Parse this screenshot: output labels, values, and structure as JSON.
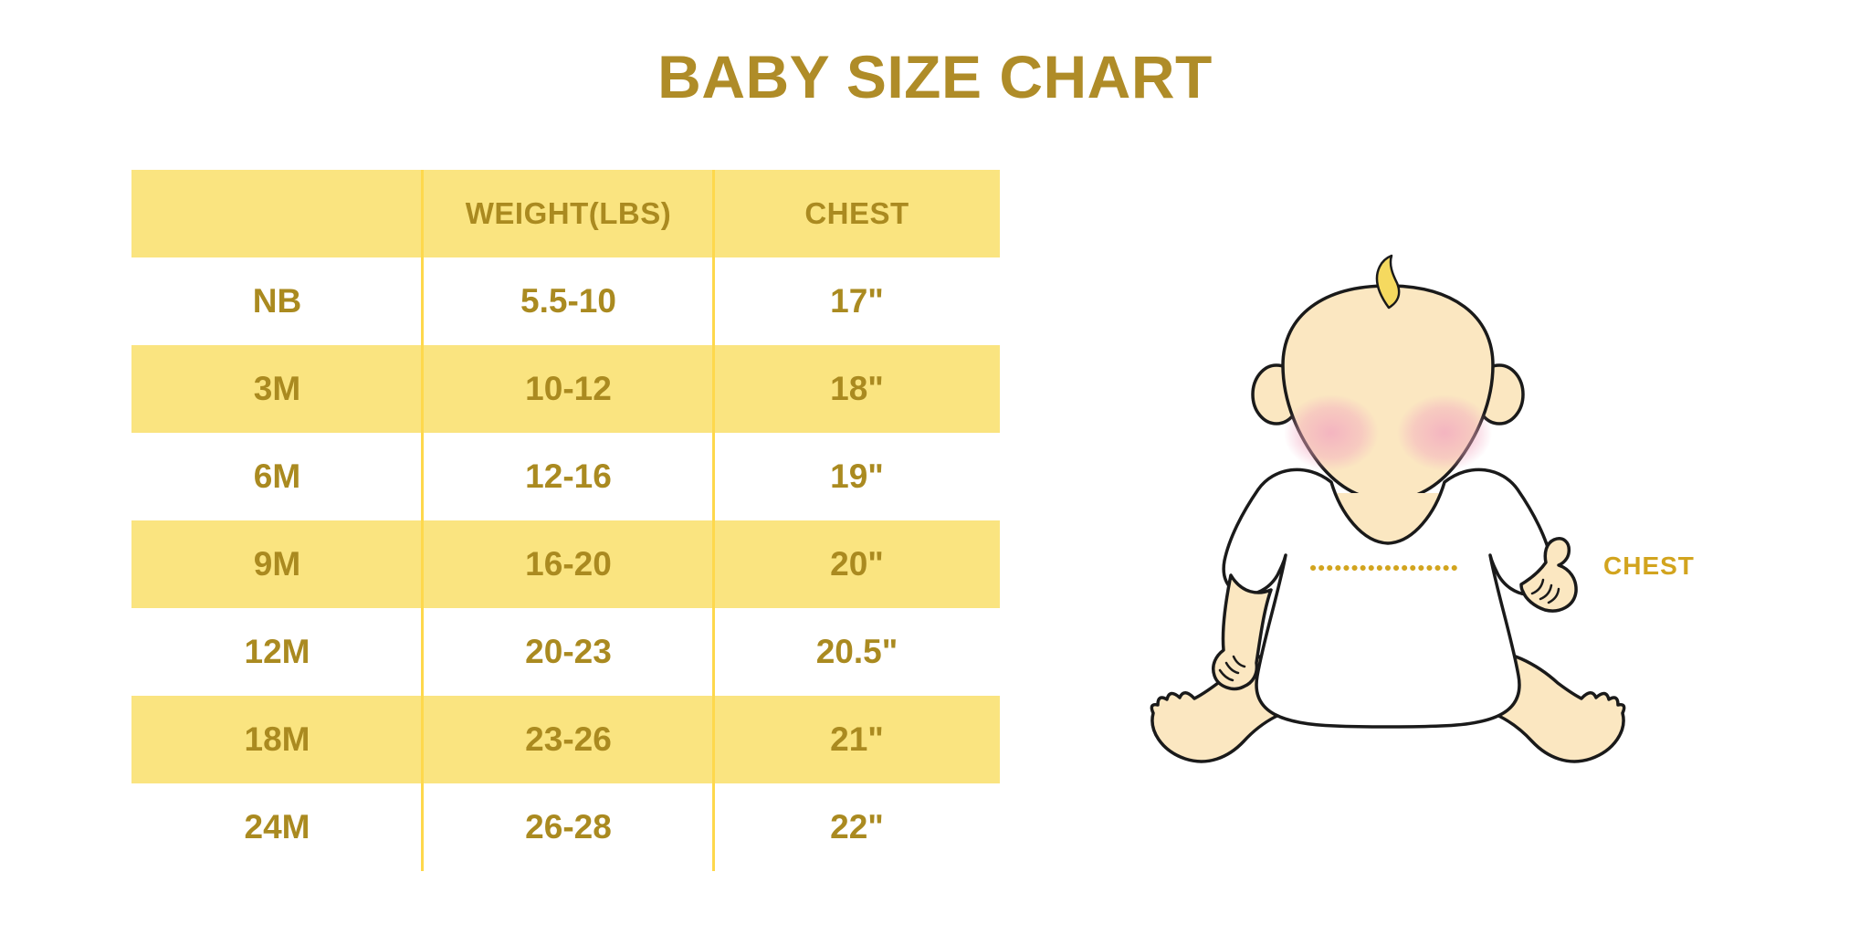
{
  "title": "BABY SIZE CHART",
  "chart_data": {
    "type": "table",
    "title": "BABY SIZE CHART",
    "columns": [
      "",
      "WEIGHT(LBS)",
      "CHEST"
    ],
    "rows": [
      {
        "size": "NB",
        "weight_lbs": "5.5-10",
        "chest": "17\""
      },
      {
        "size": "3M",
        "weight_lbs": "10-12",
        "chest": "18\""
      },
      {
        "size": "6M",
        "weight_lbs": "12-16",
        "chest": "19\""
      },
      {
        "size": "9M",
        "weight_lbs": "16-20",
        "chest": "20\""
      },
      {
        "size": "12M",
        "weight_lbs": "20-23",
        "chest": "20.5\""
      },
      {
        "size": "18M",
        "weight_lbs": "23-26",
        "chest": "21\""
      },
      {
        "size": "24M",
        "weight_lbs": "26-28",
        "chest": "22\""
      }
    ],
    "layout": {
      "striped": true,
      "stripe_starts_on_header": true,
      "grid": "vertical-dividers-only"
    }
  },
  "illustration": {
    "chest_label": "CHEST",
    "icon": "baby-icon"
  },
  "colors": {
    "title_gold": "#AF8C28",
    "text_gold": "#AA8A20",
    "row_yellow": "#FAE480",
    "divider_yellow": "#FED84C",
    "accent_gold": "#D2A41E",
    "skin": "#FBE7C1",
    "hair": "#F5D95F",
    "outline": "#1A1A1A"
  }
}
